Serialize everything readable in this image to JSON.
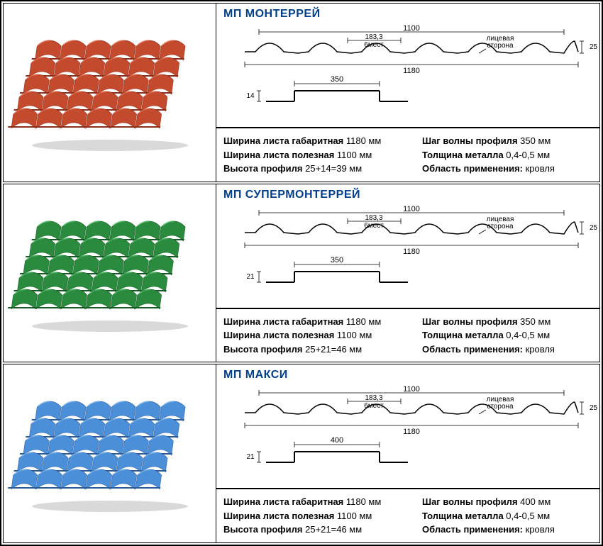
{
  "products": [
    {
      "title": "МП МОНТЕРРЕЙ",
      "tile_color": "#c44a2e",
      "tile_shadow": "#8a2f1c",
      "tile_highlight": "#e8795a",
      "diagram": {
        "top_width": "1100",
        "wave_pitch": "183,3",
        "wave_note": "6мест",
        "face_label": "лицевая сторона",
        "height": "25",
        "bottom_width": "1180",
        "step_h": "14",
        "step_w": "350"
      },
      "specs_left": [
        {
          "label": "Ширина листа габаритная",
          "value": "1180 мм"
        },
        {
          "label": "Ширина листа полезная",
          "value": "1100 мм"
        },
        {
          "label": "Высота профиля",
          "value": "25+14=39 мм"
        }
      ],
      "specs_right": [
        {
          "label": "Шаг волны профиля",
          "value": "350 мм"
        },
        {
          "label": "Толщина металла",
          "value": "0,4-0,5 мм"
        },
        {
          "label": "Область применения:",
          "value": "кровля"
        }
      ]
    },
    {
      "title": "МП СУПЕРМОНТЕРРЕЙ",
      "tile_color": "#2a8a3e",
      "tile_shadow": "#175a25",
      "tile_highlight": "#5bc470",
      "diagram": {
        "top_width": "1100",
        "wave_pitch": "183,3",
        "wave_note": "6мест",
        "face_label": "лицевая сторона",
        "height": "25",
        "bottom_width": "1180",
        "step_h": "21",
        "step_w": "350"
      },
      "specs_left": [
        {
          "label": "Ширина листа габаритная",
          "value": "1180 мм"
        },
        {
          "label": "Ширина листа полезная",
          "value": "1100 мм"
        },
        {
          "label": "Высота профиля",
          "value": "25+21=46 мм"
        }
      ],
      "specs_right": [
        {
          "label": "Шаг волны профиля",
          "value": "350 мм"
        },
        {
          "label": "Толщина металла",
          "value": "0,4-0,5 мм"
        },
        {
          "label": "Область применения:",
          "value": "кровля"
        }
      ]
    },
    {
      "title": "МП МАКСИ",
      "tile_color": "#4a8fd8",
      "tile_shadow": "#2a5a9a",
      "tile_highlight": "#8cc0f0",
      "diagram": {
        "top_width": "1100",
        "wave_pitch": "183,3",
        "wave_note": "6мест",
        "face_label": "лицевая сторона",
        "height": "25",
        "bottom_width": "1180",
        "step_h": "21",
        "step_w": "400"
      },
      "specs_left": [
        {
          "label": "Ширина листа габаритная",
          "value": "1180 мм"
        },
        {
          "label": "Ширина листа полезная",
          "value": "1100 мм"
        },
        {
          "label": "Высота профиля",
          "value": "25+21=46 мм"
        }
      ],
      "specs_right": [
        {
          "label": "Шаг волны профиля",
          "value": "400 мм"
        },
        {
          "label": "Толщина металла",
          "value": "0,4-0,5 мм"
        },
        {
          "label": "Область применения:",
          "value": "кровля"
        }
      ]
    }
  ],
  "colors": {
    "title": "#003f8a",
    "text": "#000000",
    "border": "#000000"
  }
}
